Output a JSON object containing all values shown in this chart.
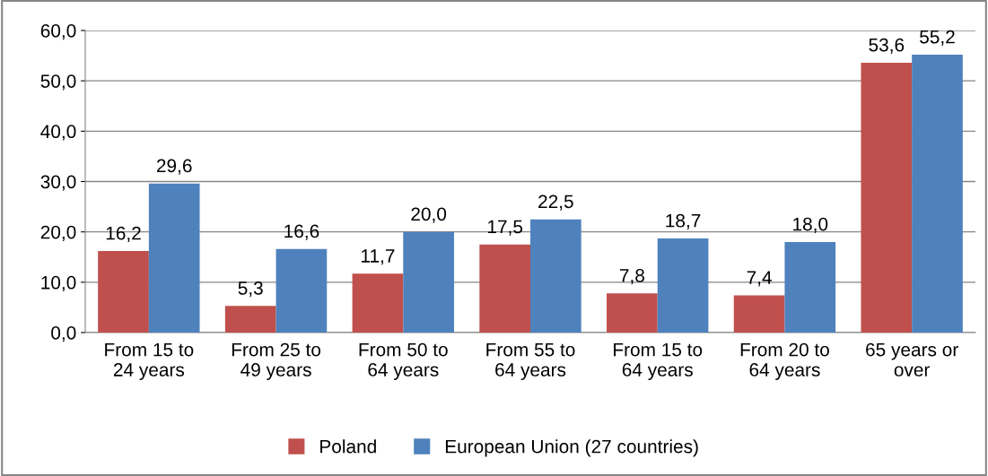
{
  "chart_data": {
    "type": "bar",
    "categories": [
      "From 15 to\n24 years",
      "From 25 to\n49 years",
      "From 50 to\n64 years",
      "From 55 to\n64 years",
      "From 15 to\n64 years",
      "From 20 to\n64 years",
      "65 years or\nover"
    ],
    "series": [
      {
        "name": "Poland",
        "color": "#c0504d",
        "values": [
          16.2,
          5.3,
          11.7,
          17.5,
          7.8,
          7.4,
          53.6
        ],
        "value_labels": [
          "16,2",
          "5,3",
          "11,7",
          "17,5",
          "7,8",
          "7,4",
          "53,6"
        ]
      },
      {
        "name": "European Union (27 countries)",
        "color": "#4f81bd",
        "values": [
          29.6,
          16.6,
          20.0,
          22.5,
          18.7,
          18.0,
          55.2
        ],
        "value_labels": [
          "29,6",
          "16,6",
          "20,0",
          "22,5",
          "18,7",
          "18,0",
          "55,2"
        ]
      }
    ],
    "ylim": [
      0,
      60
    ],
    "yticks": [
      {
        "value": 0,
        "label": "0,0"
      },
      {
        "value": 10,
        "label": "10,0"
      },
      {
        "value": 20,
        "label": "20,0"
      },
      {
        "value": 30,
        "label": "30,0"
      },
      {
        "value": 40,
        "label": "40,0"
      },
      {
        "value": 50,
        "label": "50,0"
      },
      {
        "value": 60,
        "label": "60,0"
      }
    ],
    "grid": "y",
    "legend": "bottom"
  }
}
